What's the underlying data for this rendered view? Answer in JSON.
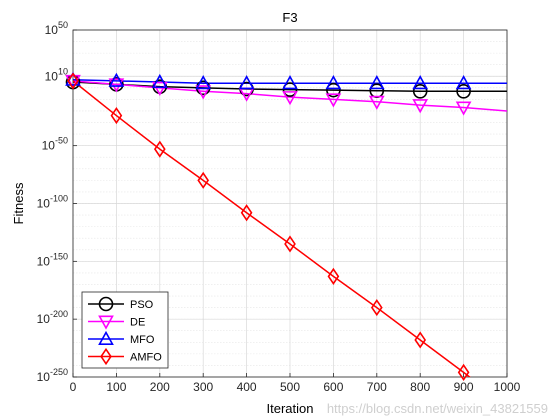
{
  "chart_data": {
    "type": "line",
    "title": "F3",
    "xlabel": "Iteration",
    "ylabel": "Fitness",
    "xlim": [
      0,
      1000
    ],
    "ylim_exponent": [
      -250,
      50
    ],
    "yscale": "log",
    "grid": true,
    "legend_position": "bottom-left",
    "x_ticks": [
      0,
      100,
      200,
      300,
      400,
      500,
      600,
      700,
      800,
      900,
      1000
    ],
    "y_tick_exponents": [
      50,
      10,
      -50,
      -100,
      -150,
      -200,
      -250
    ],
    "x": [
      0,
      100,
      200,
      300,
      400,
      500,
      600,
      700,
      800,
      900,
      1000
    ],
    "series": [
      {
        "name": "PSO",
        "color": "#000000",
        "marker": "circle",
        "log10_values": [
          5,
          3,
          1,
          0,
          -1,
          -1.5,
          -2,
          -2.5,
          -3,
          -3,
          -3
        ]
      },
      {
        "name": "DE",
        "color": "#ff00ff",
        "marker": "triangle-down",
        "log10_values": [
          6,
          3,
          0,
          -3,
          -5,
          -8,
          -10,
          -12,
          -15,
          -17,
          -20
        ]
      },
      {
        "name": "MFO",
        "color": "#0000ff",
        "marker": "triangle-up",
        "log10_values": [
          7,
          6,
          5,
          4,
          4,
          4,
          4,
          4,
          4,
          4,
          4
        ]
      },
      {
        "name": "AMFO",
        "color": "#ff0000",
        "marker": "diamond",
        "log10_values": [
          6,
          -24,
          -53,
          -80,
          -108,
          -135,
          -163,
          -190,
          -218,
          -246,
          -275
        ]
      }
    ]
  },
  "watermark": "https://blog.csdn.net/weixin_43821559"
}
